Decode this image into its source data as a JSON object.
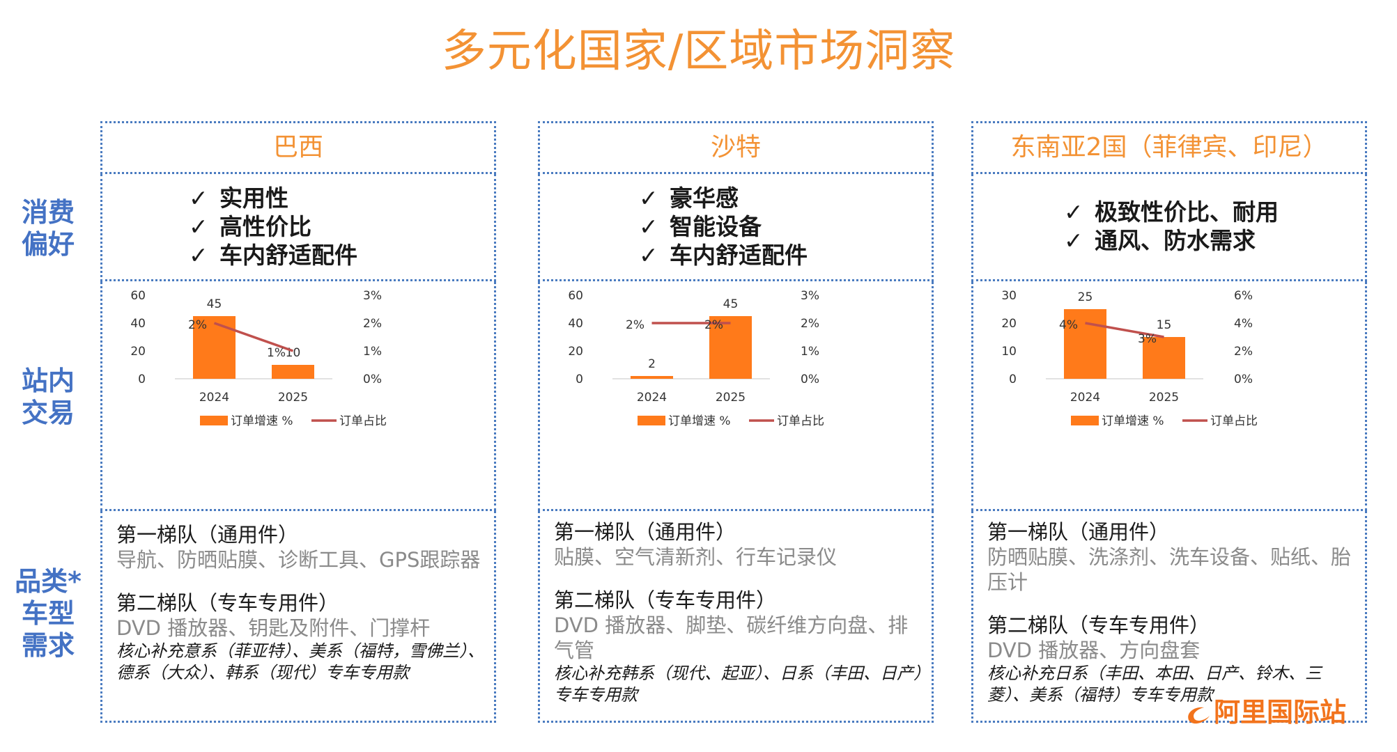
{
  "title": "多元化国家/区域市场洞察",
  "colors": {
    "accent": "#F39234",
    "label_blue": "#4472C4",
    "bar": "#FF7A1A",
    "line": "#C0504D"
  },
  "row_labels": {
    "preference": [
      "消费",
      "偏好"
    ],
    "trading": [
      "站内",
      "交易"
    ],
    "category": [
      "品类*",
      "车型",
      "需求"
    ]
  },
  "regions": [
    {
      "name": "巴西",
      "preferences": [
        "实用性",
        "高性价比",
        "车内舒适配件"
      ],
      "tier1_title": "第一梯队（通用件）",
      "tier1_items": "导航、防晒贴膜、诊断工具、GPS跟踪器",
      "tier2_title": "第二梯队（专车专用件）",
      "tier2_items": "DVD 播放器、钥匙及附件、门撑杆",
      "tier2_note": "核心补充意系（菲亚特）、美系（福特，雪佛兰）、德系（大众）、韩系（现代）专车专用款"
    },
    {
      "name": "沙特",
      "preferences": [
        "豪华感",
        "智能设备",
        "车内舒适配件"
      ],
      "tier1_title": "第一梯队（通用件）",
      "tier1_items": "贴膜、空气清新剂、行车记录仪",
      "tier2_title": "第二梯队（专车专用件）",
      "tier2_items": "DVD 播放器、脚垫、碳纤维方向盘、排气管",
      "tier2_note": "核心补充韩系（现代、起亚）、日系（丰田、日产）专车专用款"
    },
    {
      "name": "东南亚2国（菲律宾、印尼）",
      "preferences": [
        "极致性价比、耐用",
        "通风、防水需求"
      ],
      "tier1_title": "第一梯队（通用件）",
      "tier1_items": "防晒贴膜、洗涤剂、洗车设备、贴纸、胎压计",
      "tier2_title": "第二梯队（专车专用件）",
      "tier2_items": "DVD 播放器、方向盘套",
      "tier2_note": "核心补充日系（丰田、本田、日产、铃木、三菱）、美系（福特）专车专用款"
    }
  ],
  "chart_data": [
    {
      "type": "bar+line",
      "categories": [
        "2024",
        "2025"
      ],
      "series": [
        {
          "name": "订单增速 %",
          "type": "bar",
          "axis": "left",
          "values": [
            45,
            10
          ],
          "labels": [
            "45",
            "10"
          ]
        },
        {
          "name": "订单占比",
          "type": "line",
          "axis": "right",
          "values": [
            0.02,
            0.01
          ],
          "labels": [
            "2%",
            "1%"
          ]
        }
      ],
      "left_axis": {
        "min": 0,
        "max": 60,
        "ticks": [
          "0",
          "20",
          "40",
          "60"
        ]
      },
      "right_axis": {
        "min": 0,
        "max": 0.03,
        "ticks": [
          "0%",
          "1%",
          "2%",
          "3%"
        ]
      },
      "legend": "bottom"
    },
    {
      "type": "bar+line",
      "categories": [
        "2024",
        "2025"
      ],
      "series": [
        {
          "name": "订单增速 %",
          "type": "bar",
          "axis": "left",
          "values": [
            2,
            45
          ],
          "labels": [
            "2",
            "45"
          ]
        },
        {
          "name": "订单占比",
          "type": "line",
          "axis": "right",
          "values": [
            0.02,
            0.02
          ],
          "labels": [
            "2%",
            "2%"
          ]
        }
      ],
      "left_axis": {
        "min": 0,
        "max": 60,
        "ticks": [
          "0",
          "20",
          "40",
          "60"
        ]
      },
      "right_axis": {
        "min": 0,
        "max": 0.03,
        "ticks": [
          "0%",
          "1%",
          "2%",
          "3%"
        ]
      },
      "legend": "bottom"
    },
    {
      "type": "bar+line",
      "categories": [
        "2024",
        "2025"
      ],
      "series": [
        {
          "name": "订单增速 %",
          "type": "bar",
          "axis": "left",
          "values": [
            25,
            15
          ],
          "labels": [
            "25",
            "15"
          ]
        },
        {
          "name": "订单占比",
          "type": "line",
          "axis": "right",
          "values": [
            0.04,
            0.03
          ],
          "labels": [
            "4%",
            "3%"
          ]
        }
      ],
      "left_axis": {
        "min": 0,
        "max": 30,
        "ticks": [
          "0",
          "10",
          "20",
          "30"
        ]
      },
      "right_axis": {
        "min": 0,
        "max": 0.06,
        "ticks": [
          "0%",
          "2%",
          "4%",
          "6%"
        ]
      },
      "legend": "bottom"
    }
  ],
  "logo_text": "阿里国际站"
}
